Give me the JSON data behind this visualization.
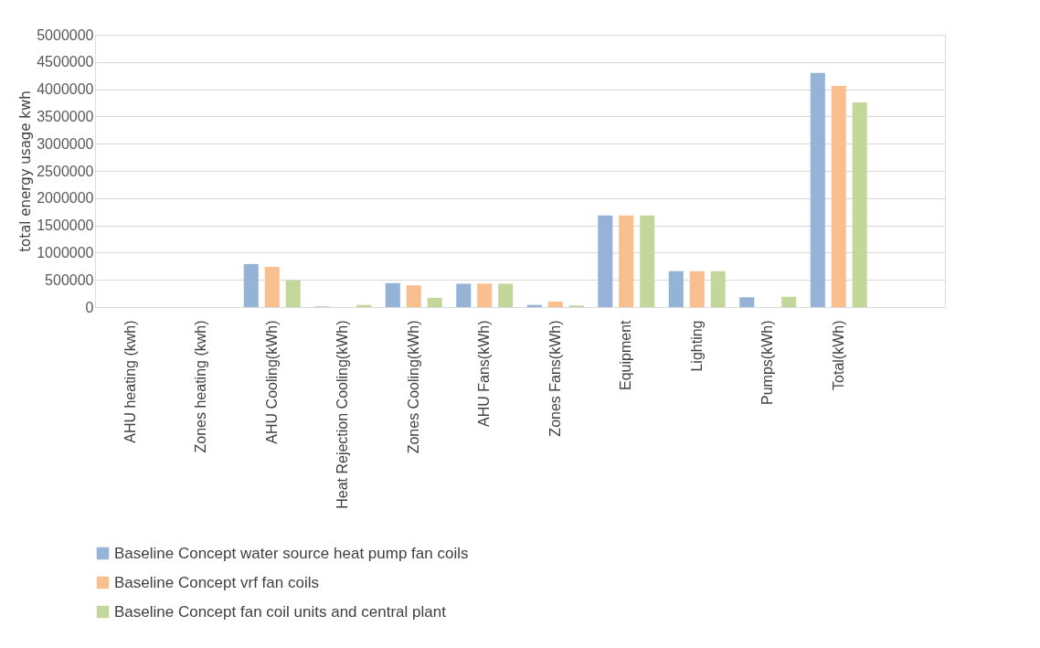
{
  "chart_data": {
    "type": "bar",
    "ylabel": "total energy usage kwh",
    "categories": [
      "AHU heating (kwh)",
      "Zones heating (kwh)",
      "AHU Cooling(kWh)",
      "Heat Rejection Cooling(kWh)",
      "Zones Cooling(kWh)",
      "AHU Fans(kWh)",
      "Zones Fans(kWh)",
      "Equipment",
      "Lighting",
      "Pumps(kWh)",
      "Total(kWh)",
      null
    ],
    "series": [
      {
        "name": "Baseline Concept water source heat pump fan coils",
        "color": "#95b3d7",
        "values": [
          0,
          0,
          790000,
          10000,
          440000,
          430000,
          40000,
          1680000,
          660000,
          180000,
          4300000,
          null
        ]
      },
      {
        "name": "Baseline Concept vrf fan coils",
        "color": "#fabf8f",
        "values": [
          0,
          0,
          740000,
          0,
          400000,
          430000,
          100000,
          1680000,
          660000,
          0,
          4060000,
          null
        ]
      },
      {
        "name": "Baseline Concept fan coil units and central plant",
        "color": "#c4d79b",
        "values": [
          0,
          0,
          490000,
          40000,
          170000,
          430000,
          30000,
          1680000,
          660000,
          190000,
          3760000,
          null
        ]
      }
    ],
    "ylim": [
      0,
      5000000
    ],
    "yticks": [
      0,
      500000,
      1000000,
      1500000,
      2000000,
      2500000,
      3000000,
      3500000,
      4000000,
      4500000,
      5000000
    ],
    "grid": "y",
    "legend": "bottom"
  }
}
